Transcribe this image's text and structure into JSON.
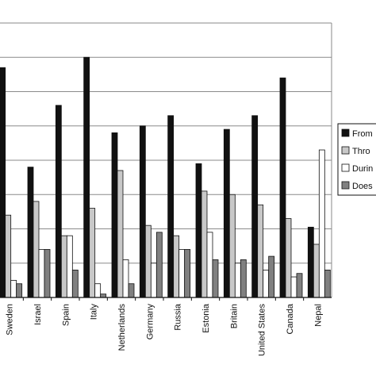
{
  "chart_data": {
    "type": "bar",
    "title": "",
    "xlabel": "",
    "ylabel": "",
    "ylim": [
      0,
      80
    ],
    "grid": true,
    "legend_position": "right",
    "categories": [
      "Sweden",
      "Israel",
      "Spain",
      "Italy",
      "Netherlands",
      "Germany",
      "Russia",
      "Estonia",
      "Britain",
      "United States",
      "Canada",
      "Nepal"
    ],
    "series": [
      {
        "name": "From",
        "color": "#111111",
        "values": [
          67,
          38,
          56,
          70,
          48,
          50,
          53,
          39,
          49,
          53,
          64,
          20.5
        ]
      },
      {
        "name": "Thro",
        "color": "#c8c8c8",
        "values": [
          24,
          28,
          18,
          26,
          37,
          21,
          18,
          31,
          30,
          27,
          23,
          15.5
        ]
      },
      {
        "name": "Durin",
        "color": "#ffffff",
        "values": [
          5,
          14,
          18,
          4,
          11,
          10,
          14,
          19,
          10,
          8,
          6,
          43
        ]
      },
      {
        "name": "Does",
        "color": "#808080",
        "values": [
          4,
          14,
          8,
          1,
          4,
          19,
          14,
          11,
          11,
          12,
          7,
          8
        ]
      }
    ]
  }
}
